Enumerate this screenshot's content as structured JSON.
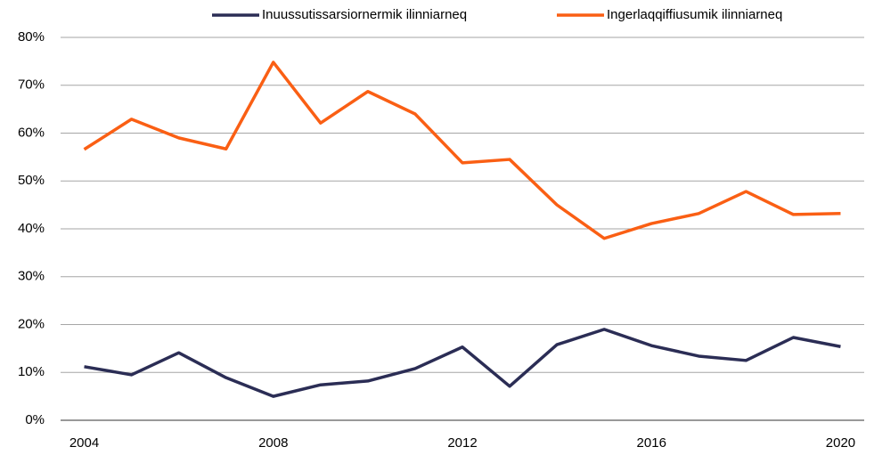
{
  "chart_data": {
    "type": "line",
    "x": [
      2004,
      2005,
      2006,
      2007,
      2008,
      2009,
      2010,
      2011,
      2012,
      2013,
      2014,
      2015,
      2016,
      2017,
      2018,
      2019,
      2020
    ],
    "series": [
      {
        "name": "Inuussutissarsiornermik ilinniarneq",
        "color": "#2b2d55",
        "values": [
          11.2,
          9.5,
          14.1,
          8.9,
          5.0,
          7.4,
          8.2,
          10.8,
          15.3,
          7.1,
          15.8,
          19.0,
          15.6,
          13.4,
          12.5,
          17.3,
          15.4
        ]
      },
      {
        "name": "Ingerlaqqiffiusumik ilinniarneq",
        "color": "#fa5f14",
        "values": [
          56.6,
          62.9,
          59.0,
          56.7,
          74.8,
          62.1,
          68.7,
          64.0,
          53.8,
          54.5,
          45.0,
          38.0,
          41.1,
          43.2,
          47.8,
          43.0,
          43.2
        ]
      }
    ],
    "xlim": [
      2003.5,
      2020.5
    ],
    "xticks": [
      2004,
      2008,
      2012,
      2016,
      2020
    ],
    "ylim": [
      0,
      80
    ],
    "yticks": [
      {
        "value": 0,
        "label": "0%"
      },
      {
        "value": 10,
        "label": "10%"
      },
      {
        "value": 20,
        "label": "20%"
      },
      {
        "value": 30,
        "label": "30%"
      },
      {
        "value": 40,
        "label": "40%"
      },
      {
        "value": 50,
        "label": "50%"
      },
      {
        "value": 60,
        "label": "60%"
      },
      {
        "value": 70,
        "label": "70%"
      },
      {
        "value": 80,
        "label": "80%"
      }
    ],
    "grid": true,
    "legend": "top"
  }
}
